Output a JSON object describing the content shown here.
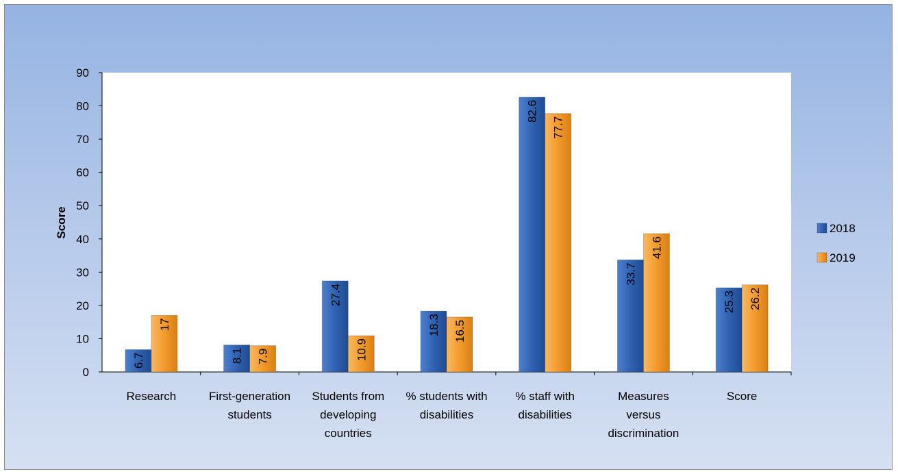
{
  "chart_data": {
    "type": "bar",
    "categories": [
      [
        "Research"
      ],
      [
        "First-generation",
        "students"
      ],
      [
        "Students from",
        "developing",
        "countries"
      ],
      [
        "% students with",
        "disabilities"
      ],
      [
        "% staff with",
        "disabilities"
      ],
      [
        "Measures",
        "versus",
        "discrimination"
      ],
      [
        "Score"
      ]
    ],
    "series": [
      {
        "name": "2018",
        "color": "#2f62b1",
        "values": [
          6.7,
          8.1,
          27.4,
          18.3,
          82.6,
          33.7,
          25.3
        ],
        "labels": [
          "6.7",
          "8.1",
          "27.4",
          "18.3",
          "82.6",
          "33.7",
          "25.3"
        ]
      },
      {
        "name": "2019",
        "color": "#f39a2c",
        "values": [
          17,
          7.9,
          10.9,
          16.5,
          77.7,
          41.6,
          26.2
        ],
        "labels": [
          "17",
          "7.9",
          "10.9",
          "16.5",
          "77.7",
          "41.6",
          "26.2"
        ]
      }
    ],
    "xlabel": "",
    "ylabel": "Score",
    "ylim": [
      0,
      90
    ],
    "yticks": [
      0,
      10,
      20,
      30,
      40,
      50,
      60,
      70,
      80,
      90
    ],
    "grid": false,
    "legend": "right",
    "data_labels": "inside-end, rotated vertical"
  }
}
